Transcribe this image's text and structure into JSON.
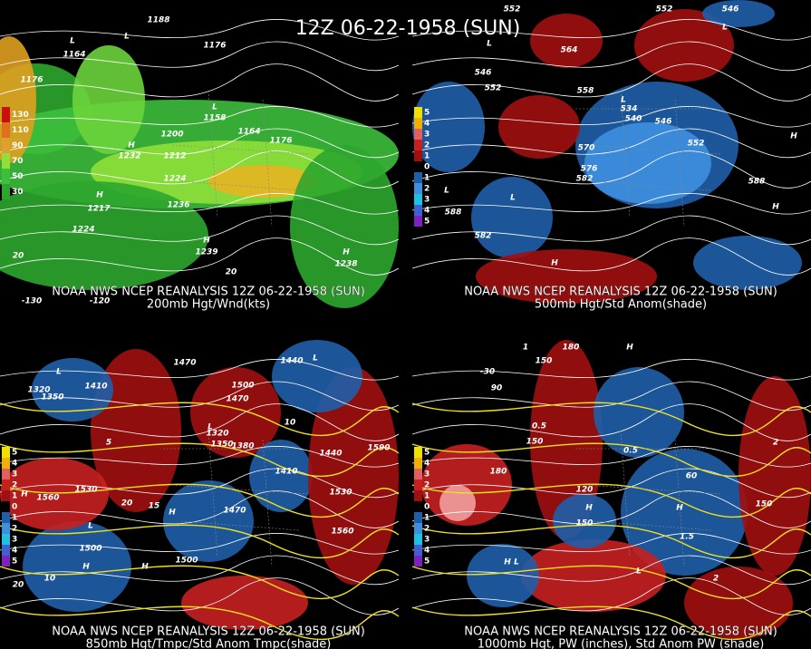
{
  "title": "12Z 06-22-1958 (SUN)",
  "panels": [
    {
      "caption": "NOAA NWS NCEP REANALYSIS 12Z 06-22-1958 (SUN)",
      "subtitle": "200mb Hgt/Wnd(kts)",
      "legend": [
        "130",
        "110",
        "90",
        "70",
        "50",
        "30"
      ],
      "labels": [
        "1188",
        "1176",
        "1176",
        "1164",
        "1200",
        "1212",
        "1224",
        "1236",
        "1224",
        "1176",
        "1164",
        "1158",
        "1232",
        "1217",
        "1239",
        "1238",
        "H",
        "L",
        "L",
        "H",
        "H",
        "H",
        "L",
        "-130",
        "-120",
        "20",
        "20"
      ]
    },
    {
      "caption": "NOAA NWS NCEP REANALYSIS 12Z 06-22-1958 (SUN)",
      "subtitle": "500mb Hgt/Std Anom(shade)",
      "legend": [
        "5",
        "4",
        "3",
        "2",
        "1",
        "0",
        "1",
        "2",
        "3",
        "4",
        "5"
      ],
      "labels": [
        "552",
        "546",
        "552",
        "558",
        "564",
        "570",
        "576",
        "582",
        "588",
        "582",
        "588",
        "546",
        "552",
        "540",
        "534",
        "546",
        "552",
        "L",
        "L",
        "L",
        "H",
        "H",
        "H",
        "L",
        "L"
      ]
    },
    {
      "caption": "NOAA NWS NCEP REANALYSIS 12Z 06-22-1958 (SUN)",
      "subtitle": "850mb Hgt/Tmpc/Std Anom Tmpc(shade)",
      "legend": [
        "5",
        "4",
        "3",
        "2",
        "1",
        "0",
        "1",
        "2",
        "3",
        "4",
        "5"
      ],
      "labels": [
        "1320",
        "1350",
        "1410",
        "1470",
        "1500",
        "1470",
        "1440",
        "1380",
        "1350",
        "1320",
        "1440",
        "1410",
        "1530",
        "1560",
        "1590",
        "1530",
        "1560",
        "1470",
        "1500",
        "1500",
        "20",
        "15",
        "10",
        "5",
        "10",
        "L",
        "L",
        "L",
        "H",
        "H",
        "L",
        "H",
        "H",
        "20"
      ]
    },
    {
      "caption": "NOAA NWS NCEP REANALYSIS 12Z 06-22-1958 (SUN)",
      "subtitle": "1000mb Hgt, PW (inches), Std Anom PW (shade)",
      "legend": [
        "5",
        "4",
        "3",
        "2",
        "1",
        "0",
        "1",
        "2",
        "3",
        "4",
        "5"
      ],
      "labels": [
        "150",
        "180",
        "90",
        "-30",
        "150",
        "180",
        "120",
        "150",
        "60",
        "150",
        "0.5",
        "0.5",
        "1.5",
        "2",
        "2",
        "1",
        "H",
        "H",
        "L",
        "L",
        "H",
        "H"
      ]
    }
  ]
}
